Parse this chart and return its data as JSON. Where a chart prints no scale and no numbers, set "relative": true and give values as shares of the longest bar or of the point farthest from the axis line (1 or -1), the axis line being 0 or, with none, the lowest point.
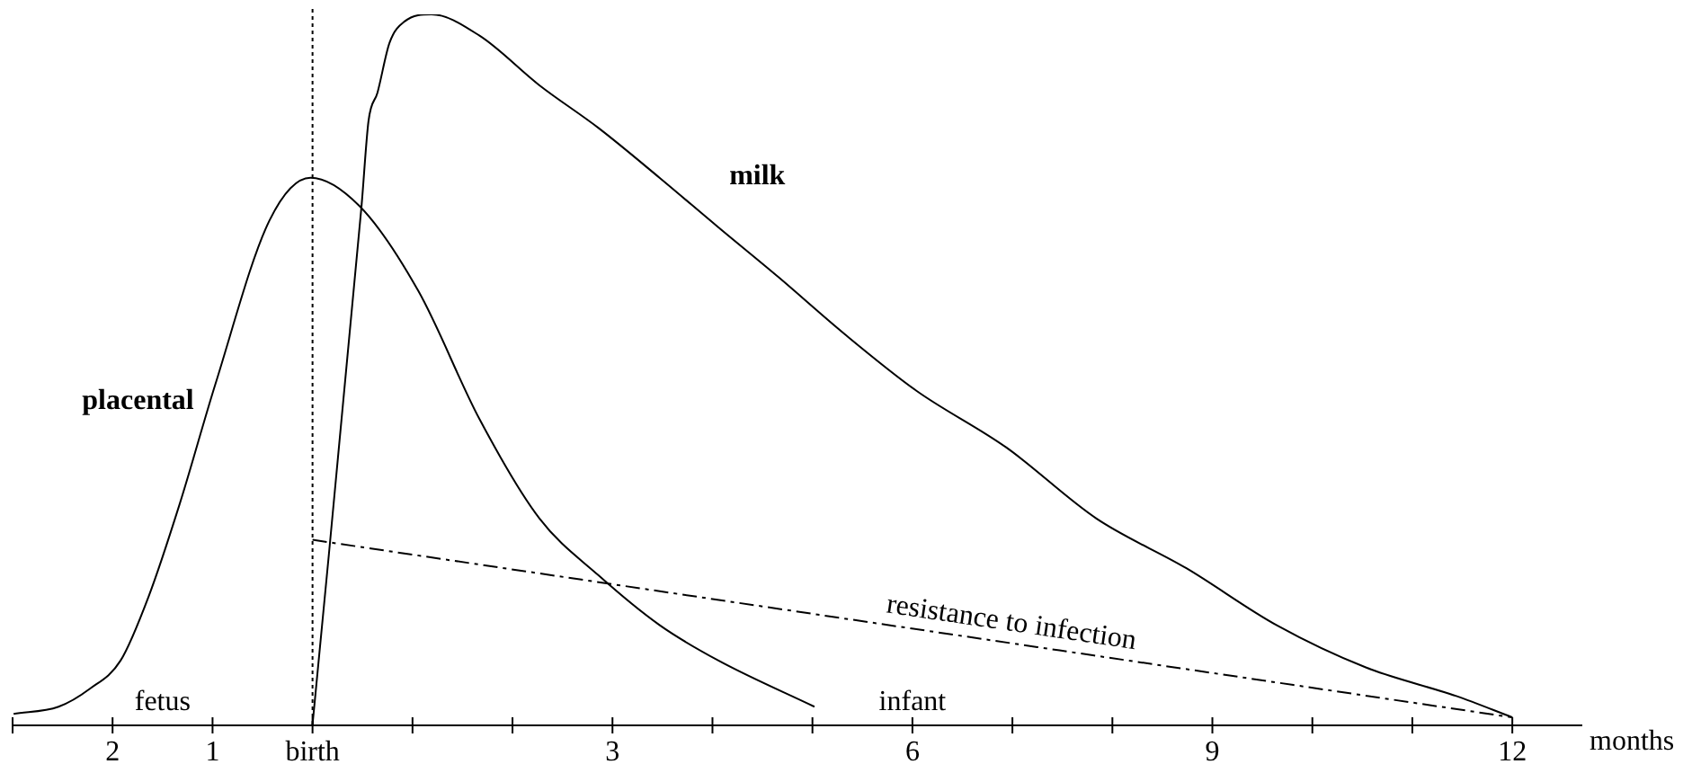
{
  "chart_data": {
    "type": "line",
    "relative": true,
    "xlabel": "months",
    "tick_labels": "x",
    "grid": false,
    "legend": false,
    "marker": "none",
    "xlim": [
      -3,
      12.7
    ],
    "xticks": [
      {
        "value": -3,
        "label": null
      },
      {
        "value": -2,
        "label": "2"
      },
      {
        "value": -1,
        "label": "1"
      },
      {
        "value": 0,
        "label": "birth"
      },
      {
        "value": 1,
        "label": null
      },
      {
        "value": 2,
        "label": null
      },
      {
        "value": 3,
        "label": "3"
      },
      {
        "value": 4,
        "label": null
      },
      {
        "value": 5,
        "label": null
      },
      {
        "value": 6,
        "label": "6"
      },
      {
        "value": 7,
        "label": null
      },
      {
        "value": 8,
        "label": null
      },
      {
        "value": 9,
        "label": "9"
      },
      {
        "value": 10,
        "label": null
      },
      {
        "value": 11,
        "label": null
      },
      {
        "value": 12,
        "label": "12"
      }
    ],
    "series": [
      {
        "name": "placental",
        "color": "#000000",
        "line_style": "solid",
        "x": [
          -2.99,
          -2.54,
          -2.23,
          -1.92,
          -1.64,
          -1.33,
          -0.97,
          -0.43,
          -0.02,
          0.47,
          1.06,
          1.67,
          2.27,
          2.86,
          3.47,
          4.06,
          5.02
        ],
        "values": [
          0.015,
          0.025,
          0.05,
          0.09,
          0.18,
          0.31,
          0.48,
          0.71,
          0.77,
          0.73,
          0.61,
          0.43,
          0.29,
          0.21,
          0.14,
          0.09,
          0.025
        ]
      },
      {
        "name": "milk",
        "color": "#000000",
        "line_style": "solid",
        "x": [
          0,
          0.49,
          0.56,
          0.65,
          0.77,
          0.92,
          1.19,
          1.67,
          2.27,
          2.86,
          3.47,
          4.06,
          4.66,
          5.32,
          6.04,
          6.94,
          7.84,
          8.74,
          9.64,
          10.54,
          11.44,
          12
        ],
        "values": [
          0,
          0.73,
          0.85,
          0.89,
          0.96,
          0.99,
          1,
          0.97,
          0.9,
          0.84,
          0.77,
          0.7,
          0.63,
          0.55,
          0.47,
          0.39,
          0.29,
          0.22,
          0.14,
          0.08,
          0.04,
          0.01
        ]
      },
      {
        "name": "resistance to infection",
        "color": "#000000",
        "line_style": "dashed",
        "x": [
          0,
          12
        ],
        "values": [
          0.26,
          0.01
        ]
      }
    ],
    "ref_lines": [
      {
        "axis": "x",
        "value": 0,
        "color": "#000000",
        "line_style": "dotted"
      }
    ],
    "annotations": [
      "fetus",
      "infant"
    ]
  }
}
